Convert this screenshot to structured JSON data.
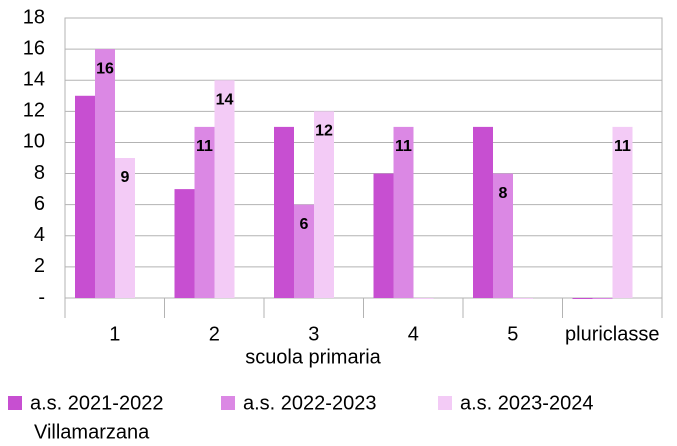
{
  "chart_data": {
    "type": "bar",
    "categories": [
      "1",
      "2",
      "3",
      "4",
      "5",
      "pluriclasse"
    ],
    "x_label": "scuola primaria",
    "series": [
      {
        "name": "a.s. 2021-2022",
        "color": "#c74fd1",
        "values": [
          13,
          7,
          11,
          8,
          11,
          0
        ],
        "data_labels": false
      },
      {
        "name": "a.s. 2022-2023",
        "color": "#db88e4",
        "values": [
          16,
          11,
          6,
          11,
          8,
          0
        ],
        "data_labels": true
      },
      {
        "name": "a.s. 2023-2024",
        "color": "#f3cbf6",
        "values": [
          9,
          14,
          12,
          0,
          0,
          11
        ],
        "data_labels": true
      }
    ],
    "caption": "Villamarzana",
    "ylim": [
      0,
      18
    ],
    "yticks": [
      {
        "value": 0,
        "label": "-"
      },
      2,
      4,
      6,
      8,
      10,
      12,
      14,
      16,
      18
    ],
    "grid": true,
    "legend": "bottom"
  }
}
